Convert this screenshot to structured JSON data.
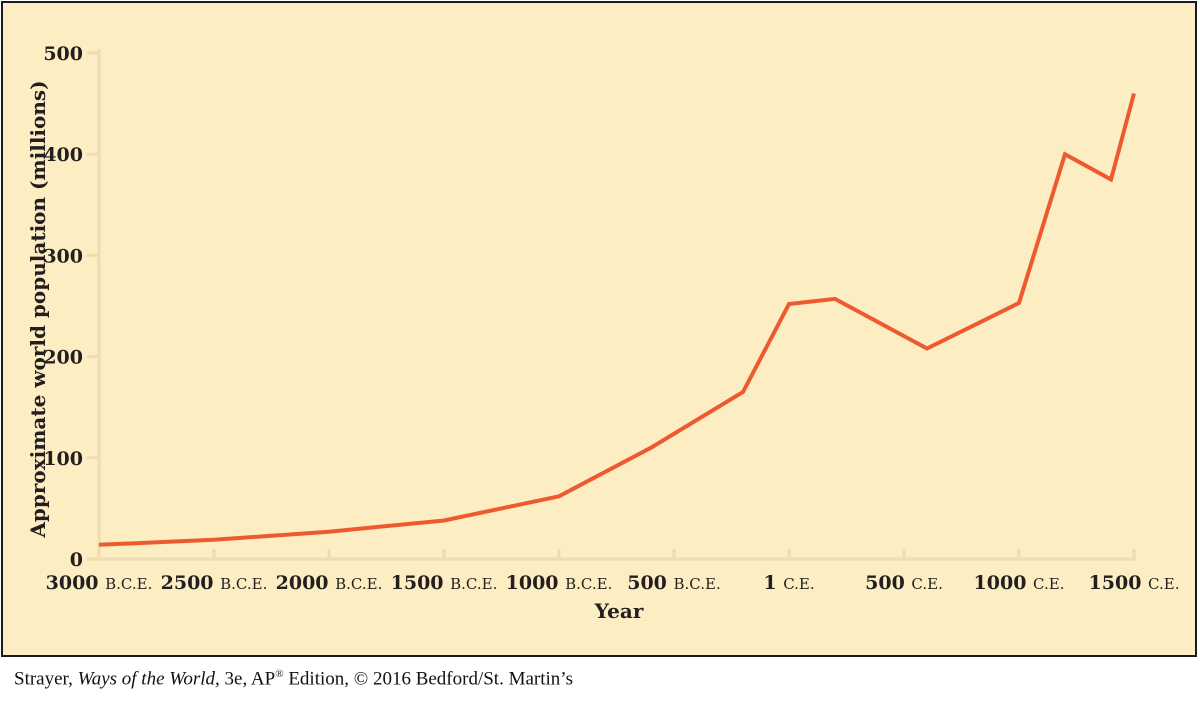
{
  "chart_data": {
    "type": "line",
    "title": "",
    "xlabel": "Year",
    "ylabel": "Approximate world population (millions)",
    "ylim": [
      0,
      500
    ],
    "xlim": [
      -3000,
      1500
    ],
    "yticks": [
      0,
      100,
      200,
      300,
      400,
      500
    ],
    "xticks": [
      {
        "value": -3000,
        "num": "3000",
        "era": "B.C.E."
      },
      {
        "value": -2500,
        "num": "2500",
        "era": "B.C.E."
      },
      {
        "value": -2000,
        "num": "2000",
        "era": "B.C.E."
      },
      {
        "value": -1500,
        "num": "1500",
        "era": "B.C.E."
      },
      {
        "value": -1000,
        "num": "1000",
        "era": "B.C.E."
      },
      {
        "value": -500,
        "num": "500",
        "era": "B.C.E."
      },
      {
        "value": 0,
        "num": "1",
        "era": "C.E."
      },
      {
        "value": 500,
        "num": "500",
        "era": "C.E."
      },
      {
        "value": 1000,
        "num": "1000",
        "era": "C.E."
      },
      {
        "value": 1500,
        "num": "1500",
        "era": "C.E."
      }
    ],
    "grid": false,
    "line_color": "#ee5a2f",
    "background_color": "#fdedc2",
    "series": [
      {
        "x": [
          -3000,
          -2500,
          -2000,
          -1500,
          -1000,
          -600,
          -200,
          0,
          200,
          600,
          1000,
          1200,
          1400,
          1500
        ],
        "y": [
          14,
          19,
          27,
          38,
          62,
          110,
          165,
          252,
          257,
          208,
          253,
          400,
          375,
          460
        ]
      }
    ]
  },
  "credit": {
    "prefix": "Strayer, ",
    "title": "Ways of the World,",
    "suffix": " 3e, AP",
    "reg": "®",
    "rest": " Edition, © 2016 Bedford/St. Martin’s"
  }
}
